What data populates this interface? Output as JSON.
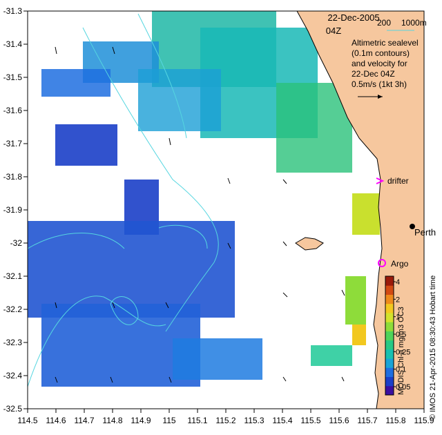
{
  "map": {
    "date": "22-Dec-2005",
    "time": "04Z",
    "scale_depths": [
      "200",
      "1000m"
    ],
    "legend_lines": [
      "Altimetric sealevel",
      "(0.1m contours)",
      "and velocity for",
      "22-Dec 04Z",
      "0.5m/s (1kt 3h)"
    ],
    "place_labels": {
      "drifter": "drifter",
      "perth": "Perth",
      "argo": "Argo"
    },
    "side_text_left": "MODIS Chl-a mg/m3 OC3",
    "side_text_right": "© IMOS 21-Apr-2015 08:30:43 Hobart time",
    "colorbar": {
      "ticks": [
        "4",
        "2",
        "1",
        "0.5",
        "0.25",
        "0.1",
        "0.05"
      ],
      "colors": [
        "#3a0fa0",
        "#1b3fc8",
        "#1f6ee0",
        "#19a3d6",
        "#18c0b0",
        "#27c985",
        "#4fd35a",
        "#8edc3a",
        "#d3e22d",
        "#f2c81f",
        "#ee8a1c",
        "#d24a13",
        "#9a1a0a"
      ]
    },
    "lon_ticks": [
      "114.5",
      "114.6",
      "114.7",
      "114.8",
      "114.9",
      "115",
      "115.1",
      "115.2",
      "115.3",
      "115.4",
      "115.5",
      "115.6",
      "115.7",
      "115.8",
      "115.9"
    ],
    "lat_ticks": [
      "-31.3",
      "-31.4",
      "-31.5",
      "-31.6",
      "-31.7",
      "-31.8",
      "-31.9",
      "-32",
      "-32.1",
      "-32.2",
      "-32.3",
      "-32.4",
      "-32.5"
    ],
    "colors": {
      "land": "#f6c79e",
      "coast": "#000000",
      "contour": "#55d6e0",
      "drifter": "#ff00ff",
      "argo": "#ff00ff"
    }
  }
}
